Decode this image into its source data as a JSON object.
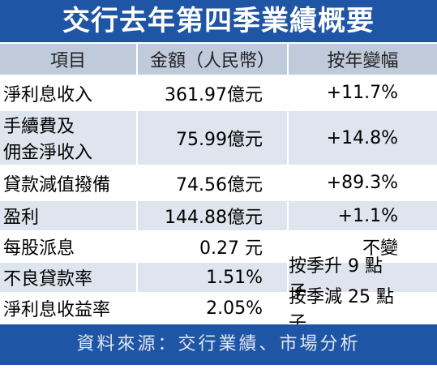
{
  "title": "交行去年第四季業績概要",
  "table": {
    "header": [
      "項目",
      "金額（人民幣）",
      "按年變幅"
    ],
    "rows": [
      [
        "淨利息收入",
        "361.97億元",
        "+11.7%"
      ],
      [
        [
          "手續費及",
          "佣金淨收入"
        ],
        "75.99億元",
        "+14.8%"
      ],
      [
        "貸款減值撥備",
        "74.56億元",
        "+89.3%"
      ],
      [
        "盈利",
        "144.88億元",
        "+1.1%"
      ],
      [
        "每股派息",
        "0.27 元",
        "不變"
      ],
      [
        "不良貸款率",
        "1.51%",
        "按季升 9 點子"
      ],
      [
        "淨利息收益率",
        "2.05%",
        "按季減 25 點子"
      ]
    ]
  },
  "source": "資料來源：交行業績、市場分析"
}
